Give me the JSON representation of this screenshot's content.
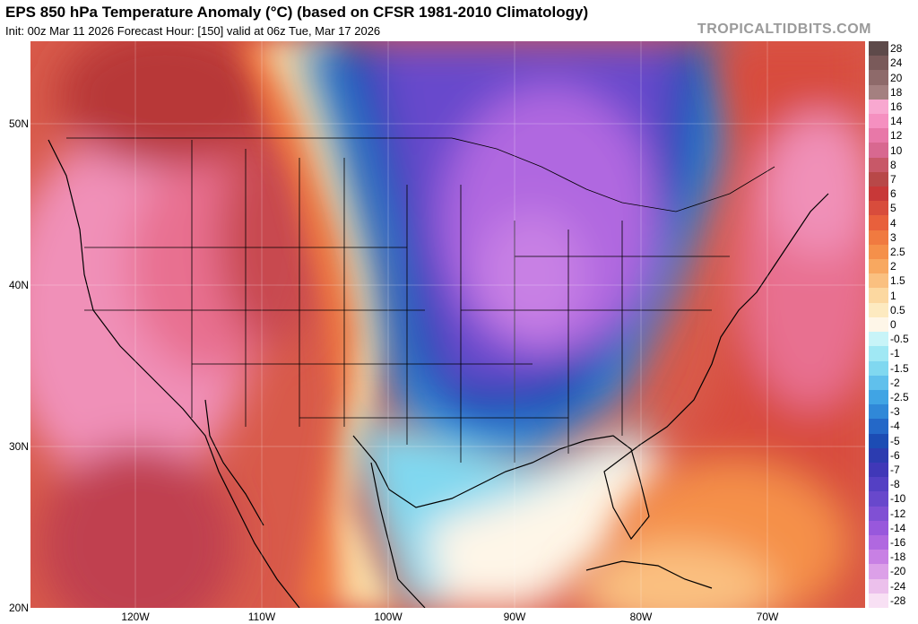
{
  "header": {
    "title": "EPS 850 hPa Temperature Anomaly (°C) (based on CFSR 1981-2010 Climatology)",
    "subtitle": "Init: 00z Mar 11 2026   Forecast Hour: [150]   valid at 06z Tue, Mar 17 2026",
    "brand": "TROPICALTIDBITS.COM"
  },
  "map": {
    "lat_labels": [
      "50N",
      "40N",
      "30N",
      "20N"
    ],
    "lon_labels": [
      "120W",
      "110W",
      "100W",
      "90W",
      "80W",
      "70W"
    ],
    "extent": {
      "lon_min": -128,
      "lon_max": -62,
      "lat_min": 20,
      "lat_max": 55
    }
  },
  "colorbar": {
    "labels": [
      "28",
      "24",
      "20",
      "18",
      "16",
      "14",
      "12",
      "10",
      "8",
      "7",
      "6",
      "5",
      "4",
      "3",
      "2.5",
      "2",
      "1.5",
      "1",
      "0.5",
      "0",
      "-0.5",
      "-1",
      "-1.5",
      "-2",
      "-2.5",
      "-3",
      "-4",
      "-5",
      "-6",
      "-7",
      "-8",
      "-10",
      "-12",
      "-14",
      "-16",
      "-18",
      "-20",
      "-24",
      "-28"
    ],
    "colors": [
      "#5e4a4a",
      "#7a5a5a",
      "#8e6a6a",
      "#a48080",
      "#f8a8d0",
      "#f590c0",
      "#e878a8",
      "#d86890",
      "#c85868",
      "#b84848",
      "#c83838",
      "#d84c3c",
      "#e8603c",
      "#f07a40",
      "#f5904a",
      "#f8a860",
      "#fac080",
      "#fcd8a0",
      "#fdeac0",
      "#fef6e8",
      "#c8f4f8",
      "#a0e8f4",
      "#80d8f0",
      "#60c0ec",
      "#40a4e4",
      "#3088d8",
      "#2468c8",
      "#1c4cb4",
      "#2c3cb0",
      "#4038b8",
      "#5440c4",
      "#6848cc",
      "#8050d4",
      "#9858dc",
      "#b068e0",
      "#c880e4",
      "#dca0e8",
      "#ecc0ec",
      "#f8e0f4"
    ]
  }
}
